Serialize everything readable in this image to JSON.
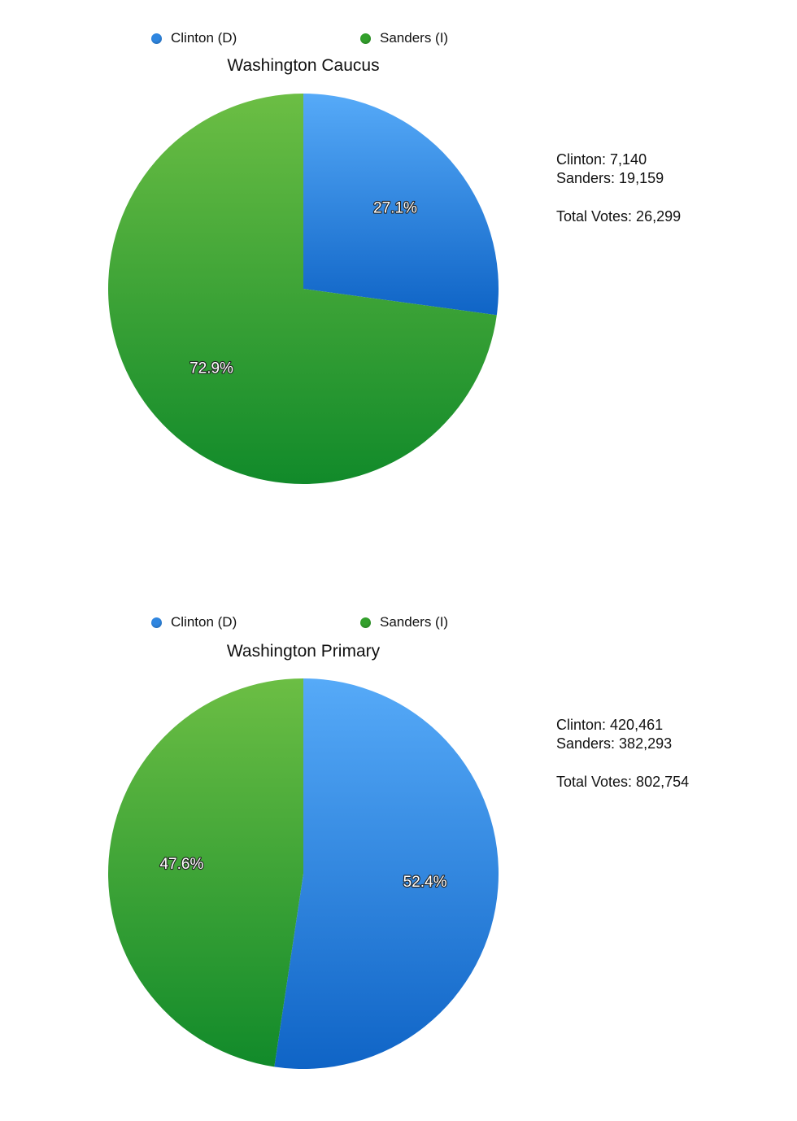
{
  "charts": [
    {
      "legend": [
        {
          "label": "Clinton (D)",
          "color": "#2f86e0"
        },
        {
          "label": "Sanders (I)",
          "color": "#33a02c"
        }
      ],
      "title": "Washington Caucus",
      "stats": {
        "clinton": "Clinton: 7,140",
        "sanders": "Sanders: 19,159",
        "total": "Total Votes: 26,299"
      }
    },
    {
      "legend": [
        {
          "label": "Clinton (D)",
          "color": "#2f86e0"
        },
        {
          "label": "Sanders (I)",
          "color": "#33a02c"
        }
      ],
      "title": "Washington Primary",
      "stats": {
        "clinton": "Clinton: 420,461",
        "sanders": "Sanders: 382,293",
        "total": "Total Votes: 802,754"
      }
    }
  ],
  "chart_data": [
    {
      "type": "pie",
      "title": "Washington Caucus",
      "categories": [
        "Clinton (D)",
        "Sanders (I)"
      ],
      "values": [
        7140,
        19159
      ],
      "percent_labels": [
        "27.1%",
        "72.9%"
      ],
      "colors": [
        "#2f86e0",
        "#33a02c"
      ],
      "legend_position": "top"
    },
    {
      "type": "pie",
      "title": "Washington Primary",
      "categories": [
        "Clinton (D)",
        "Sanders (I)"
      ],
      "values": [
        420461,
        382293
      ],
      "percent_labels": [
        "52.4%",
        "47.6%"
      ],
      "colors": [
        "#2f86e0",
        "#33a02c"
      ],
      "legend_position": "top"
    }
  ]
}
